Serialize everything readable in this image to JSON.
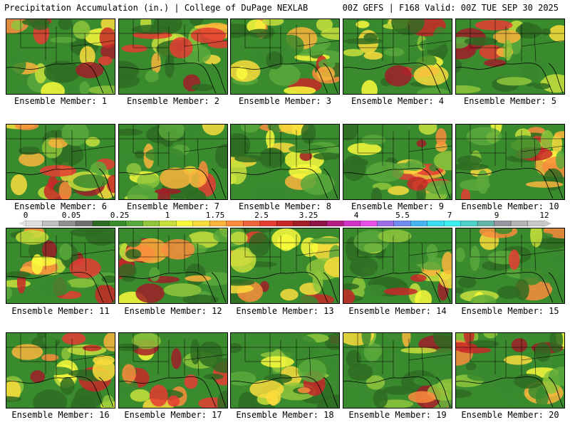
{
  "header": {
    "title": "Precipitation Accumulation (in.) | College of DuPage NEXLAB",
    "valid": "00Z GEFS | F168 Valid: 00Z TUE SEP 30 2025"
  },
  "legend": {
    "unit": "in.",
    "tick_labels": [
      "0",
      "0.05",
      "0.25",
      "1",
      "1.75",
      "2.5",
      "3.25",
      "4",
      "5.5",
      "7",
      "9",
      "12"
    ],
    "colors": [
      "#e0e0e0",
      "#c0c0c0",
      "#909090",
      "#707070",
      "#2e6b22",
      "#3a8a2e",
      "#59a83b",
      "#8fc63c",
      "#c8e03c",
      "#fafa3c",
      "#fadc3c",
      "#fab43c",
      "#fa8c3c",
      "#f0643c",
      "#e63c32",
      "#c82828",
      "#a01e28",
      "#8c1446",
      "#b41e82",
      "#d232c8",
      "#e650e6",
      "#9b6ee6",
      "#6e8cf0",
      "#46b4f0",
      "#3cdcf0",
      "#3cf0f0",
      "#50d2c8",
      "#64b4aa",
      "#9696a0",
      "#b4b4b4",
      "#c8c8c8"
    ]
  },
  "members": [
    {
      "label": "Ensemble Member: 1"
    },
    {
      "label": "Ensemble Member: 2"
    },
    {
      "label": "Ensemble Member: 3"
    },
    {
      "label": "Ensemble Member: 4"
    },
    {
      "label": "Ensemble Member: 5"
    },
    {
      "label": "Ensemble Member: 6"
    },
    {
      "label": "Ensemble Member: 7"
    },
    {
      "label": "Ensemble Member: 8"
    },
    {
      "label": "Ensemble Member: 9"
    },
    {
      "label": "Ensemble Member: 10"
    },
    {
      "label": "Ensemble Member: 11"
    },
    {
      "label": "Ensemble Member: 12"
    },
    {
      "label": "Ensemble Member: 13"
    },
    {
      "label": "Ensemble Member: 14"
    },
    {
      "label": "Ensemble Member: 15"
    },
    {
      "label": "Ensemble Member: 16"
    },
    {
      "label": "Ensemble Member: 17"
    },
    {
      "label": "Ensemble Member: 18"
    },
    {
      "label": "Ensemble Member: 19"
    },
    {
      "label": "Ensemble Member: 20"
    }
  ]
}
